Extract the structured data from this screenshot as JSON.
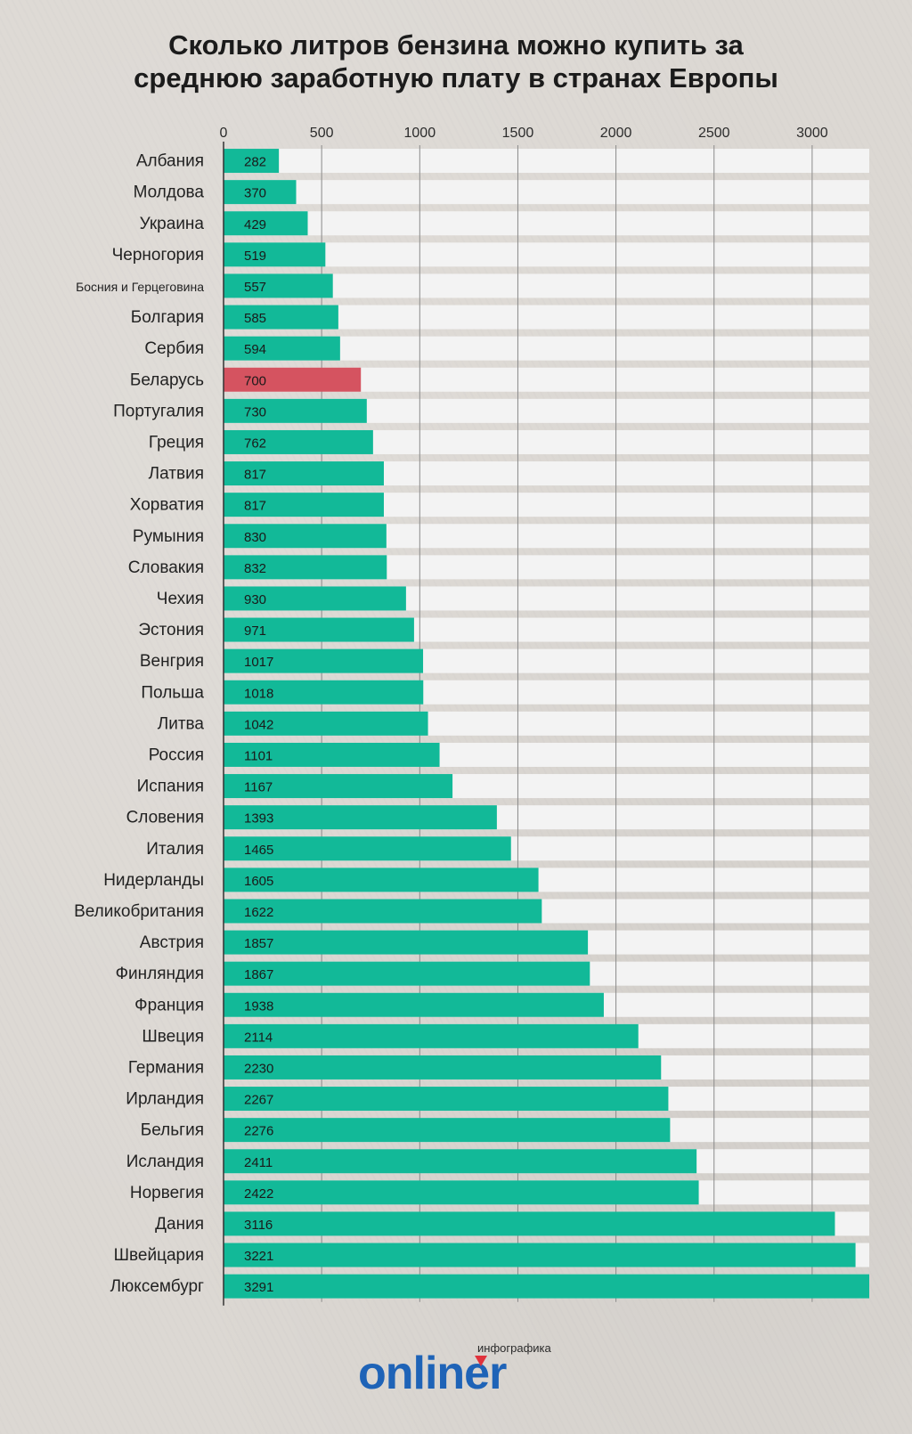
{
  "chart_data": {
    "type": "bar",
    "orientation": "horizontal",
    "title_lines": [
      "Сколько литров бензина можно купить за",
      "среднюю заработную плату в странах Европы"
    ],
    "xlim": [
      0,
      3291
    ],
    "x_ticks": [
      "0",
      "500",
      "1000",
      "1500",
      "2000",
      "2500",
      "3000"
    ],
    "categories": [
      "Албания",
      "Молдова",
      "Украина",
      "Черногория",
      "Босния и Герцеговина",
      "Болгария",
      "Сербия",
      "Беларусь",
      "Португалия",
      "Греция",
      "Латвия",
      "Хорватия",
      "Румыния",
      "Словакия",
      "Чехия",
      "Эстония",
      "Венгрия",
      "Польша",
      "Литва",
      "Россия",
      "Испания",
      "Словения",
      "Италия",
      "Нидерланды",
      "Великобритания",
      "Австрия",
      "Финляндия",
      "Франция",
      "Швеция",
      "Германия",
      "Ирландия",
      "Бельгия",
      "Исландия",
      "Норвегия",
      "Дания",
      "Швейцария",
      "Люксембург"
    ],
    "values": [
      282,
      370,
      429,
      519,
      557,
      585,
      594,
      700,
      730,
      762,
      817,
      817,
      830,
      832,
      930,
      971,
      1017,
      1018,
      1042,
      1101,
      1167,
      1393,
      1465,
      1605,
      1622,
      1857,
      1867,
      1938,
      2114,
      2230,
      2267,
      2276,
      2411,
      2422,
      3116,
      3221,
      3291
    ],
    "highlight": "Беларусь",
    "grid": true
  },
  "colors": {
    "bar": "#12b998",
    "highlight_bar": "#d55360",
    "track": "#f3f3f3",
    "grid": "#8a8a8a",
    "logo": "#1e63b7"
  },
  "brand": {
    "subtitle": "инфографика",
    "name": "onliner"
  }
}
